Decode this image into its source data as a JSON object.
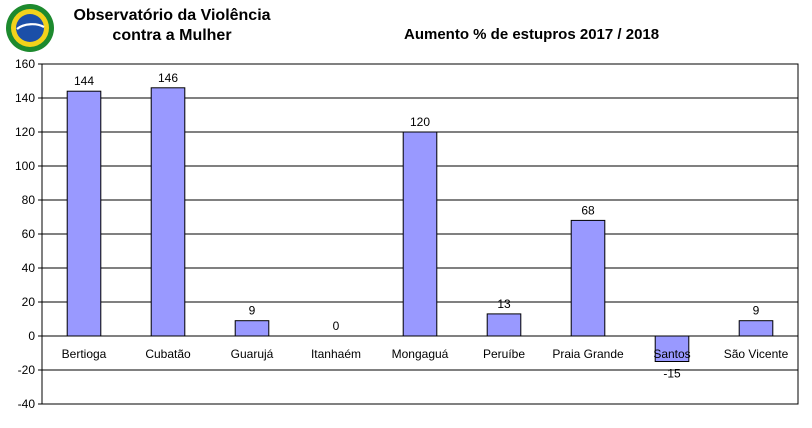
{
  "brand": {
    "line1": "Observatório da Violência",
    "line2": "contra a Mulher",
    "logo_icon": "brazil-globe-icon"
  },
  "chart_data": {
    "type": "bar",
    "title": "Aumento % de estupros 2017  / 2018",
    "categories": [
      "Bertioga",
      "Cubatão",
      "Guarujá",
      "Itanhaém",
      "Mongaguá",
      "Peruíbe",
      "Praia Grande",
      "Santos",
      "São Vicente"
    ],
    "values": [
      144,
      146,
      9,
      0,
      120,
      13,
      68,
      -15,
      9
    ],
    "data_labels": [
      "144",
      "146",
      "9",
      "0",
      "120",
      "13",
      "68",
      "-15",
      "9"
    ],
    "ylim": [
      -40,
      160
    ],
    "yticks": [
      160,
      140,
      120,
      100,
      80,
      60,
      40,
      20,
      0,
      -20,
      -40
    ],
    "xlabel": "",
    "ylabel": "",
    "grid": true,
    "legend": "none",
    "colors": {
      "bar_fill": "#9999ff",
      "bar_stroke": "#000000",
      "grid": "#000000"
    }
  }
}
